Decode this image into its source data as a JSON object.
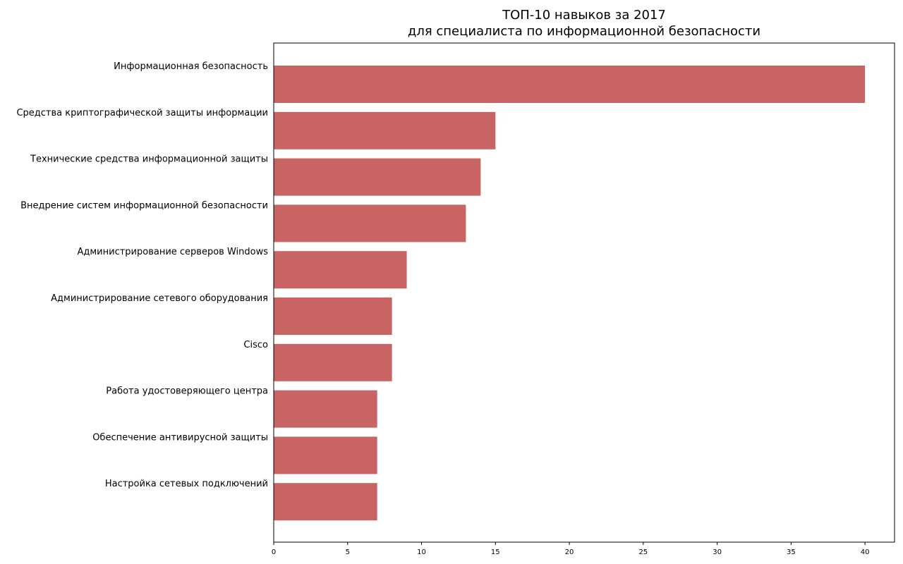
{
  "chart_data": {
    "type": "bar",
    "orientation": "horizontal",
    "title": [
      "ТОП-10 навыков за 2017",
      "для специалиста по информационной безопасности"
    ],
    "xlabel": "",
    "ylabel": "",
    "categories": [
      "Информационная безопасность",
      "Средства криптографической защиты информации",
      "Технические средства информационной защиты",
      "Внедрение систем информационной безопасности",
      "Администрирование серверов Windows",
      "Администрирование сетевого оборудования",
      "Cisco",
      "Работа удостоверяющего центра",
      "Обеспечение антивирусной защиты",
      "Настройка сетевых подключений"
    ],
    "values": [
      40,
      15,
      14,
      13,
      9,
      8,
      8,
      7,
      7,
      7
    ],
    "xlim": [
      0,
      42
    ],
    "xticks": [
      "0",
      "5",
      "10",
      "15",
      "20",
      "25",
      "30",
      "35",
      "40"
    ],
    "grid": false,
    "legend": "none",
    "bar_color": "#c86564"
  }
}
